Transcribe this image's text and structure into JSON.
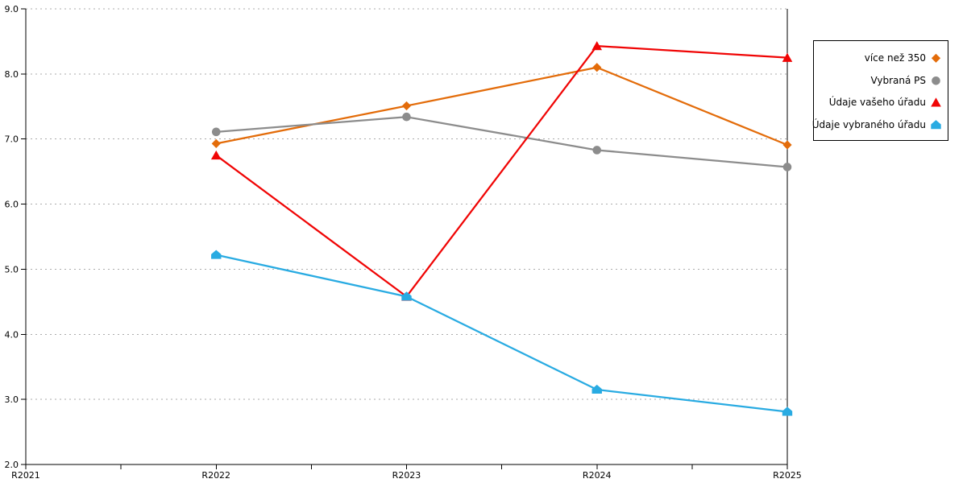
{
  "chart_data": {
    "type": "line",
    "title": "",
    "xlabel": "",
    "ylabel": "",
    "categories": [
      "R2021",
      "R2022",
      "R2023",
      "R2024",
      "R2025"
    ],
    "series_start_category_index": 1,
    "series": [
      {
        "name": "více než 350",
        "marker": "diamond",
        "color": "#E36C0A",
        "values": [
          6.93,
          7.51,
          8.1,
          6.91
        ]
      },
      {
        "name": "Vybraná PS",
        "marker": "circle",
        "color": "#8C8C8C",
        "values": [
          7.11,
          7.34,
          6.83,
          6.57
        ]
      },
      {
        "name": "Údaje vašeho úřadu",
        "marker": "triangle",
        "color": "#F00505",
        "values": [
          6.75,
          4.58,
          8.43,
          8.25
        ]
      },
      {
        "name": "Údaje vybraného úřadu",
        "marker": "pentagon",
        "color": "#29ABE2",
        "values": [
          5.22,
          4.58,
          3.15,
          2.81
        ]
      }
    ],
    "ylim": [
      2.0,
      9.0
    ],
    "ytick_labels": [
      "2.0",
      "3.0",
      "4.0",
      "5.0",
      "6.0",
      "7.0",
      "8.0",
      "9.0"
    ],
    "grid": "horizontal-dotted",
    "legend_position": "right",
    "axis_color": "#000000",
    "grid_color": "#ABABAB",
    "text_color": "#000000"
  }
}
